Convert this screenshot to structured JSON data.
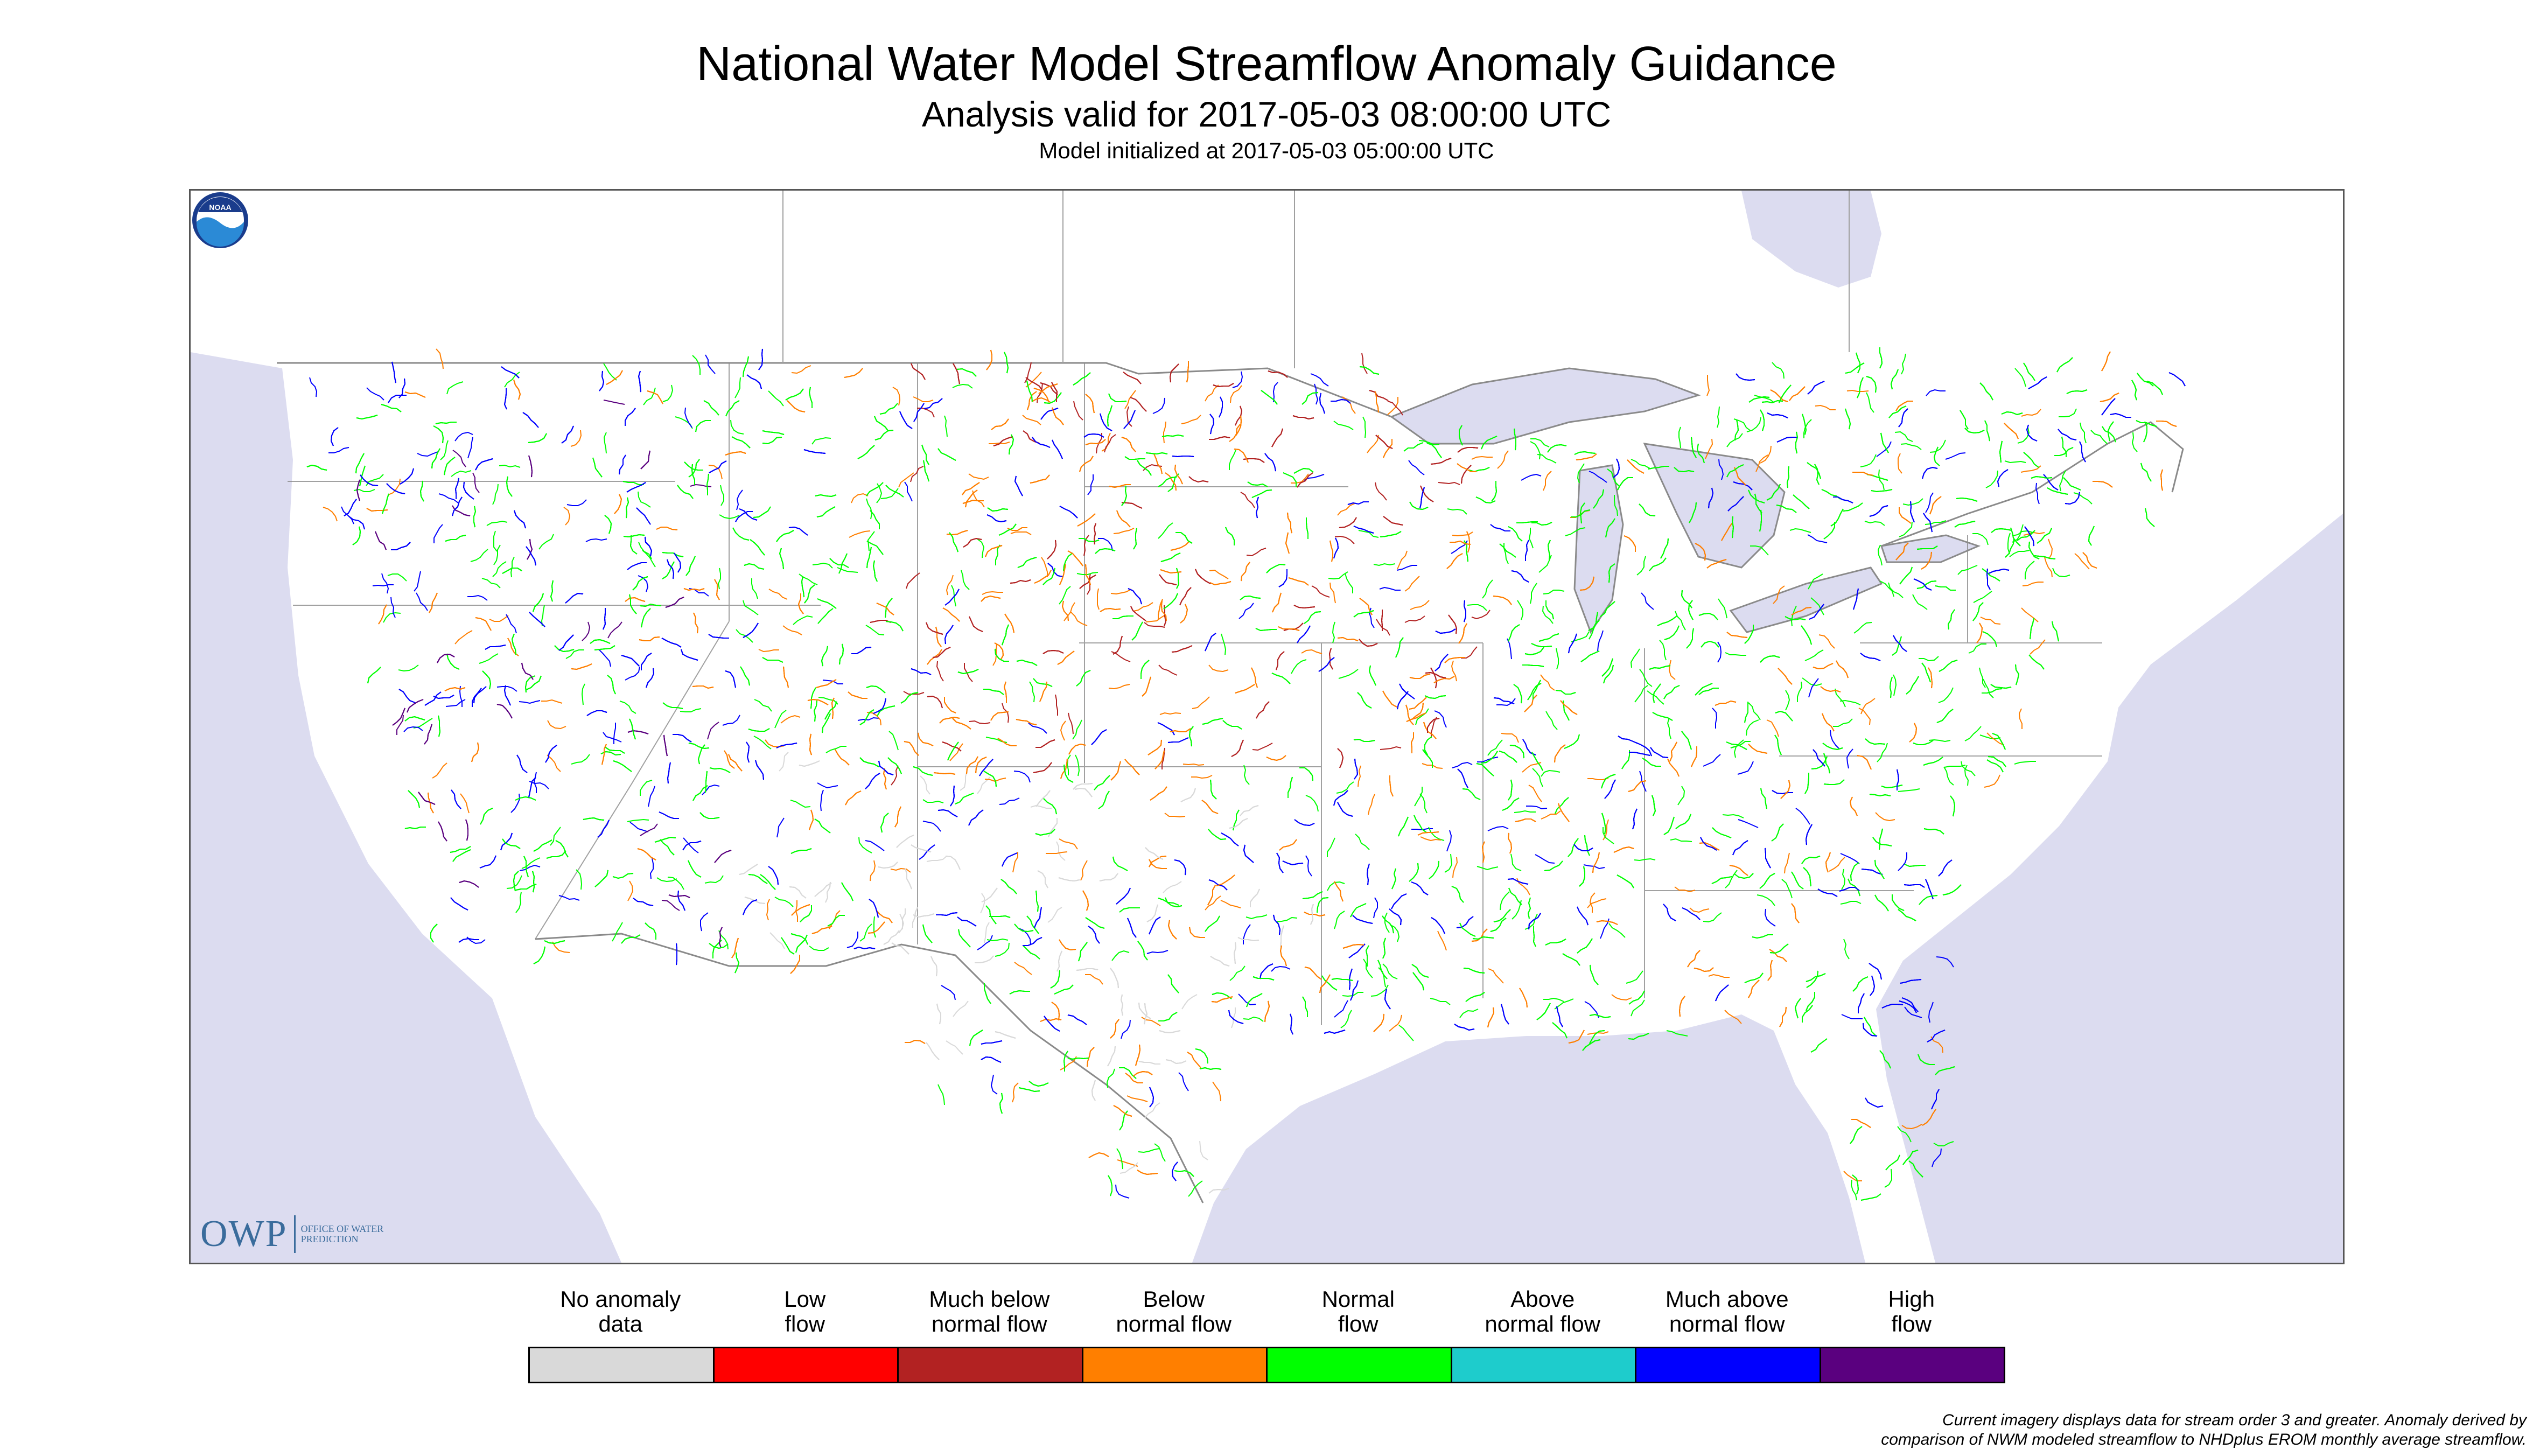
{
  "header": {
    "title": "National Water Model Streamflow Anomaly Guidance",
    "analysis_valid": "Analysis valid for 2017-05-03 08:00:00 UTC",
    "model_initialized": "Model initialized at 2017-05-03 05:00:00 UTC"
  },
  "map": {
    "region": "Continental United States",
    "land_color": "#ffffff",
    "water_color": "#dcdcf0",
    "border_color": "#8a8a8a",
    "stream_colors_by_category": {
      "no_anomaly": "#d9d9d9",
      "low": "#ff0000",
      "much_below": "#b22222",
      "below": "#ff7f00",
      "normal": "#00ff00",
      "above": "#1ecccc",
      "much_above": "#0000ff",
      "high": "#5a007f"
    }
  },
  "branding": {
    "owp_logo_text": "OWP",
    "owp_logo_subtext": "OFFICE OF WATER PREDICTION",
    "noaa_logo_text": "NOAA"
  },
  "legend": {
    "items": [
      {
        "label": "No anomaly\ndata",
        "color": "#d9d9d9"
      },
      {
        "label": "Low\nflow",
        "color": "#ff0000"
      },
      {
        "label": "Much below\nnormal flow",
        "color": "#b22222"
      },
      {
        "label": "Below\nnormal flow",
        "color": "#ff7f00"
      },
      {
        "label": "Normal\nflow",
        "color": "#00ff00"
      },
      {
        "label": "Above\nnormal flow",
        "color": "#1ecccc"
      },
      {
        "label": "Much above\nnormal flow",
        "color": "#0000ff"
      },
      {
        "label": "High\nflow",
        "color": "#5a007f"
      }
    ]
  },
  "footnote": {
    "line1": "Current imagery displays data for stream order 3 and greater. Anomaly derived by",
    "line2": "comparison of NWM modeled streamflow to NHDplus EROM monthly average streamflow."
  }
}
